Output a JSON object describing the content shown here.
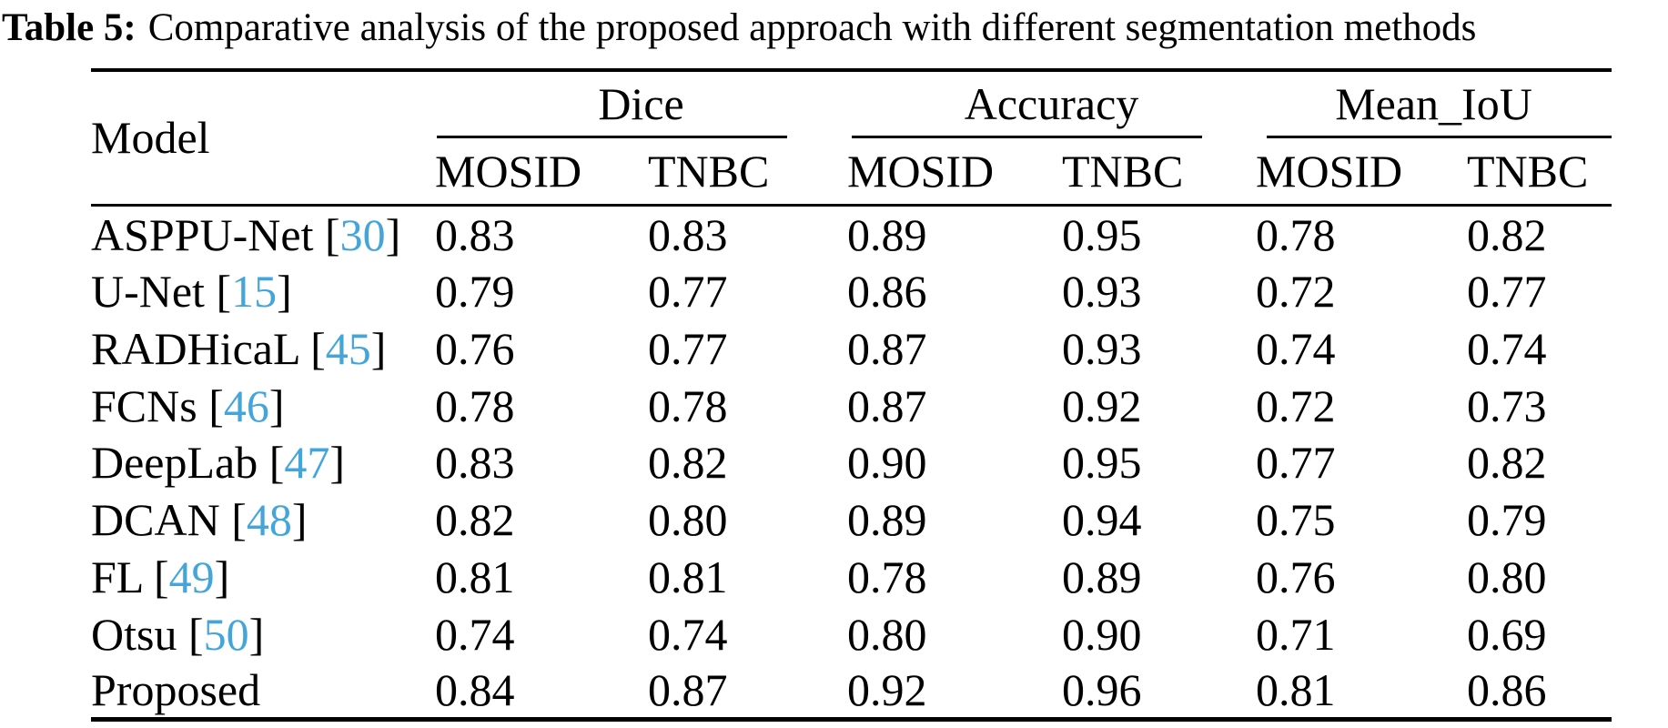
{
  "caption": {
    "label": "Table 5:",
    "text": "Comparative analysis of the proposed approach with different segmentation methods"
  },
  "colors": {
    "text": "#000000",
    "background": "#ffffff",
    "citation_link": "#44a5da"
  },
  "table": {
    "model_header": "Model",
    "groups": [
      {
        "label": "Dice",
        "sub": [
          "MOSID",
          "TNBC"
        ]
      },
      {
        "label": "Accuracy",
        "sub": [
          "MOSID",
          "TNBC"
        ]
      },
      {
        "label": "Mean_IoU",
        "sub": [
          "MOSID",
          "TNBC"
        ]
      }
    ],
    "cite_format": {
      "open": "[",
      "close": "]"
    },
    "rows": [
      {
        "model": "ASPPU-Net",
        "cite": "30",
        "values": [
          "0.83",
          "0.83",
          "0.89",
          "0.95",
          "0.78",
          "0.82"
        ]
      },
      {
        "model": "U-Net",
        "cite": "15",
        "values": [
          "0.79",
          "0.77",
          "0.86",
          "0.93",
          "0.72",
          "0.77"
        ]
      },
      {
        "model": "RADHicaL",
        "cite": "45",
        "values": [
          "0.76",
          "0.77",
          "0.87",
          "0.93",
          "0.74",
          "0.74"
        ]
      },
      {
        "model": "FCNs",
        "cite": "46",
        "values": [
          "0.78",
          "0.78",
          "0.87",
          "0.92",
          "0.72",
          "0.73"
        ]
      },
      {
        "model": "DeepLab",
        "cite": "47",
        "values": [
          "0.83",
          "0.82",
          "0.90",
          "0.95",
          "0.77",
          "0.82"
        ]
      },
      {
        "model": "DCAN",
        "cite": "48",
        "values": [
          "0.82",
          "0.80",
          "0.89",
          "0.94",
          "0.75",
          "0.79"
        ]
      },
      {
        "model": "FL",
        "cite": "49",
        "values": [
          "0.81",
          "0.81",
          "0.78",
          "0.89",
          "0.76",
          "0.80"
        ]
      },
      {
        "model": "Otsu",
        "cite": "50",
        "values": [
          "0.74",
          "0.74",
          "0.80",
          "0.90",
          "0.71",
          "0.69"
        ]
      },
      {
        "model": "Proposed",
        "cite": null,
        "values": [
          "0.84",
          "0.87",
          "0.92",
          "0.96",
          "0.81",
          "0.86"
        ]
      }
    ]
  }
}
